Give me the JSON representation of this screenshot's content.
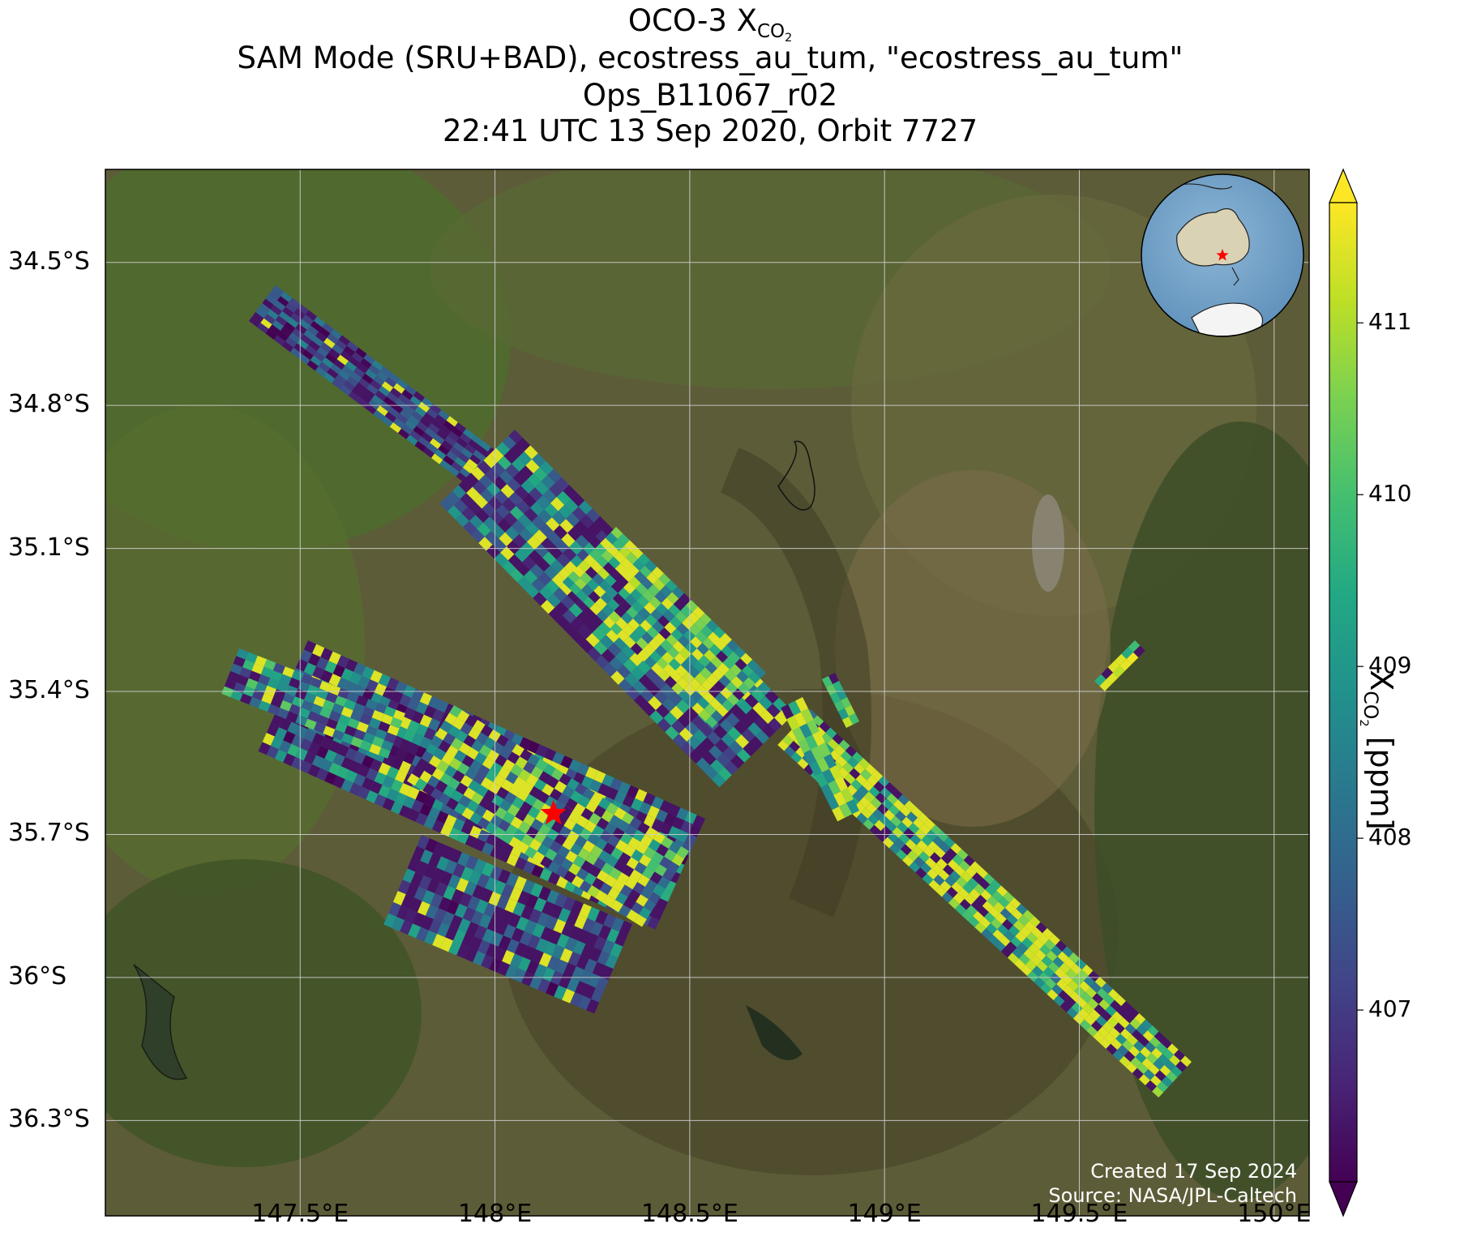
{
  "title": {
    "line1_prefix": "OCO-3 X",
    "line1_sub": "CO",
    "line1_sub2": "2",
    "line2": "SAM Mode (SRU+BAD), ecostress_au_tum, \"ecostress_au_tum\"",
    "line3": "Ops_B11067_r02",
    "line4": "22:41 UTC 13 Sep 2020, Orbit 7727"
  },
  "axes": {
    "lat_ticks": [
      "34.5°S",
      "34.8°S",
      "35.1°S",
      "35.4°S",
      "35.7°S",
      "36°S",
      "36.3°S"
    ],
    "lat_values": [
      -34.5,
      -34.8,
      -35.1,
      -35.4,
      -35.7,
      -36.0,
      -36.3
    ],
    "lon_ticks": [
      "147.5°E",
      "148°E",
      "148.5°E",
      "149°E",
      "149.5°E",
      "150°E"
    ],
    "lon_values": [
      147.5,
      148.0,
      148.5,
      149.0,
      149.5,
      150.0
    ],
    "lat_range": [
      -36.5,
      -34.305
    ],
    "lon_range": [
      147.0,
      150.09
    ]
  },
  "colorbar": {
    "colormap": "viridis",
    "ticks": [
      "407",
      "408",
      "409",
      "410",
      "411"
    ],
    "tick_values": [
      407,
      408,
      409,
      410,
      411
    ],
    "range": [
      406.0,
      411.7
    ],
    "extend": "both",
    "label_prefix": "X",
    "label_sub": "CO",
    "label_sub2": "2",
    "label_suffix": " [ppm]"
  },
  "target": {
    "name": "ecostress_au_tum",
    "lon": 148.15,
    "lat": -35.656,
    "marker": "red-star"
  },
  "credits": {
    "created": "Created 17 Sep 2024",
    "source": "Source: NASA/JPL-Caltech"
  },
  "colors": {
    "star": "#ff0000",
    "ocean": "#6e9ec2",
    "land": "#d9d2b4",
    "antarctica": "#f4f4f4",
    "basemap": "#5a5a35"
  },
  "inset": {
    "type": "orthographic-globe",
    "region": "Australia"
  }
}
